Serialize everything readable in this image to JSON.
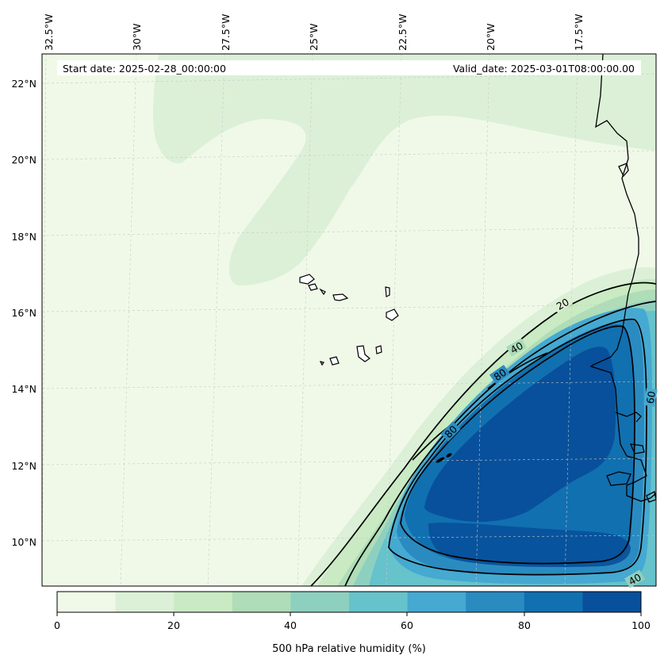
{
  "header": {
    "start_date": "Start date: 2025-02-28_00:00:00",
    "valid_date": "Valid_date: 2025-03-01T08:00:00.00"
  },
  "lon_ticks": [
    "32.5°W",
    "30°W",
    "27.5°W",
    "25°W",
    "22.5°W",
    "20°W",
    "17.5°W"
  ],
  "lat_ticks": [
    "22°N",
    "20°N",
    "18°N",
    "16°N",
    "14°N",
    "12°N",
    "10°N"
  ],
  "contour_labels": [
    "20",
    "40",
    "80",
    "80",
    "60",
    "40"
  ],
  "colorbar": {
    "label": "500 hPa relative humidity (%)",
    "tick_labels": [
      "0",
      "20",
      "40",
      "60",
      "80",
      "100"
    ],
    "colors": [
      "#f0f9e8",
      "#dcf0d8",
      "#c9eac2",
      "#aeddb8",
      "#8ed0bf",
      "#66c2cb",
      "#45a9d1",
      "#2a8bc1",
      "#1170b0",
      "#08509b"
    ]
  }
}
